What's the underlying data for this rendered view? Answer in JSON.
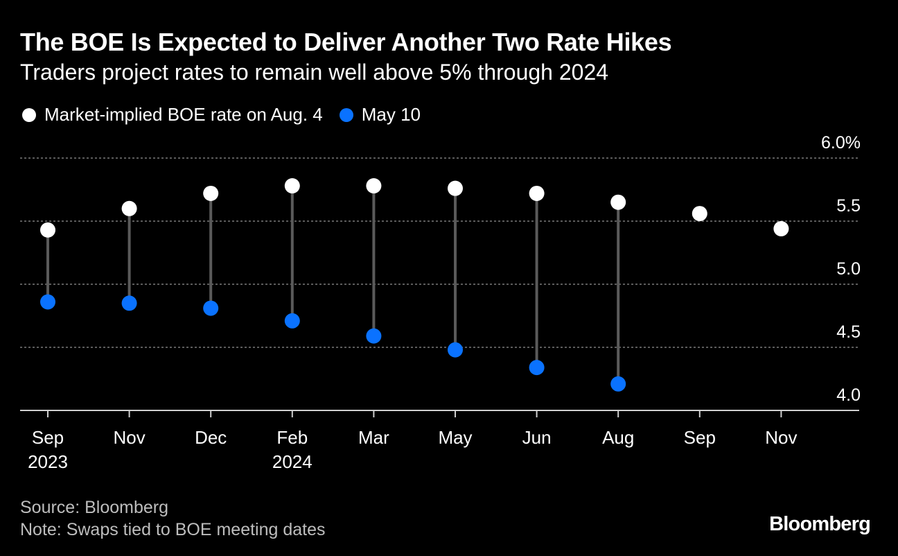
{
  "title": "The BOE Is Expected to Deliver Another Two Rate Hikes",
  "subtitle": "Traders project rates to remain well above 5% through 2024",
  "colors": {
    "background": "#000000",
    "aug_series": "#ffffff",
    "may_series": "#0a72ff",
    "connector": "#5a5a5a",
    "gridline": "#7a7a7a",
    "text": "#ffffff",
    "muted_text": "#bdbdbd"
  },
  "footer": {
    "source": "Source: Bloomberg",
    "note": "Note: Swaps tied to BOE meeting dates",
    "brand": "Bloomberg"
  },
  "chart_data": {
    "type": "dumbbell",
    "title": "The BOE Is Expected to Deliver Another Two Rate Hikes",
    "subtitle": "Traders project rates to remain well above 5% through 2024",
    "categories": [
      "Sep",
      "Nov",
      "Dec",
      "Feb",
      "Mar",
      "May",
      "Jun",
      "Aug",
      "Sep",
      "Nov"
    ],
    "category_years": [
      "2023",
      "",
      "",
      "2024",
      "",
      "",
      "",
      "",
      "",
      ""
    ],
    "series": [
      {
        "name": "Market-implied BOE rate on Aug. 4",
        "values": [
          5.43,
          5.6,
          5.72,
          5.78,
          5.78,
          5.76,
          5.72,
          5.65,
          5.56,
          5.44
        ]
      },
      {
        "name": "May 10",
        "values": [
          4.86,
          4.85,
          4.81,
          4.71,
          4.59,
          4.48,
          4.34,
          4.21,
          null,
          null
        ]
      }
    ],
    "y_axis": {
      "min": 4.0,
      "max": 6.0,
      "ticks": [
        4.0,
        4.5,
        5.0,
        5.5,
        6.0
      ],
      "tick_labels": [
        "4.0",
        "4.5",
        "5.0",
        "5.5",
        "6.0%"
      ],
      "gridlines": [
        4.5,
        5.0,
        5.5,
        6.0
      ],
      "position": "right"
    },
    "xlabel": "",
    "ylabel": "",
    "legend_position": "top-left"
  }
}
